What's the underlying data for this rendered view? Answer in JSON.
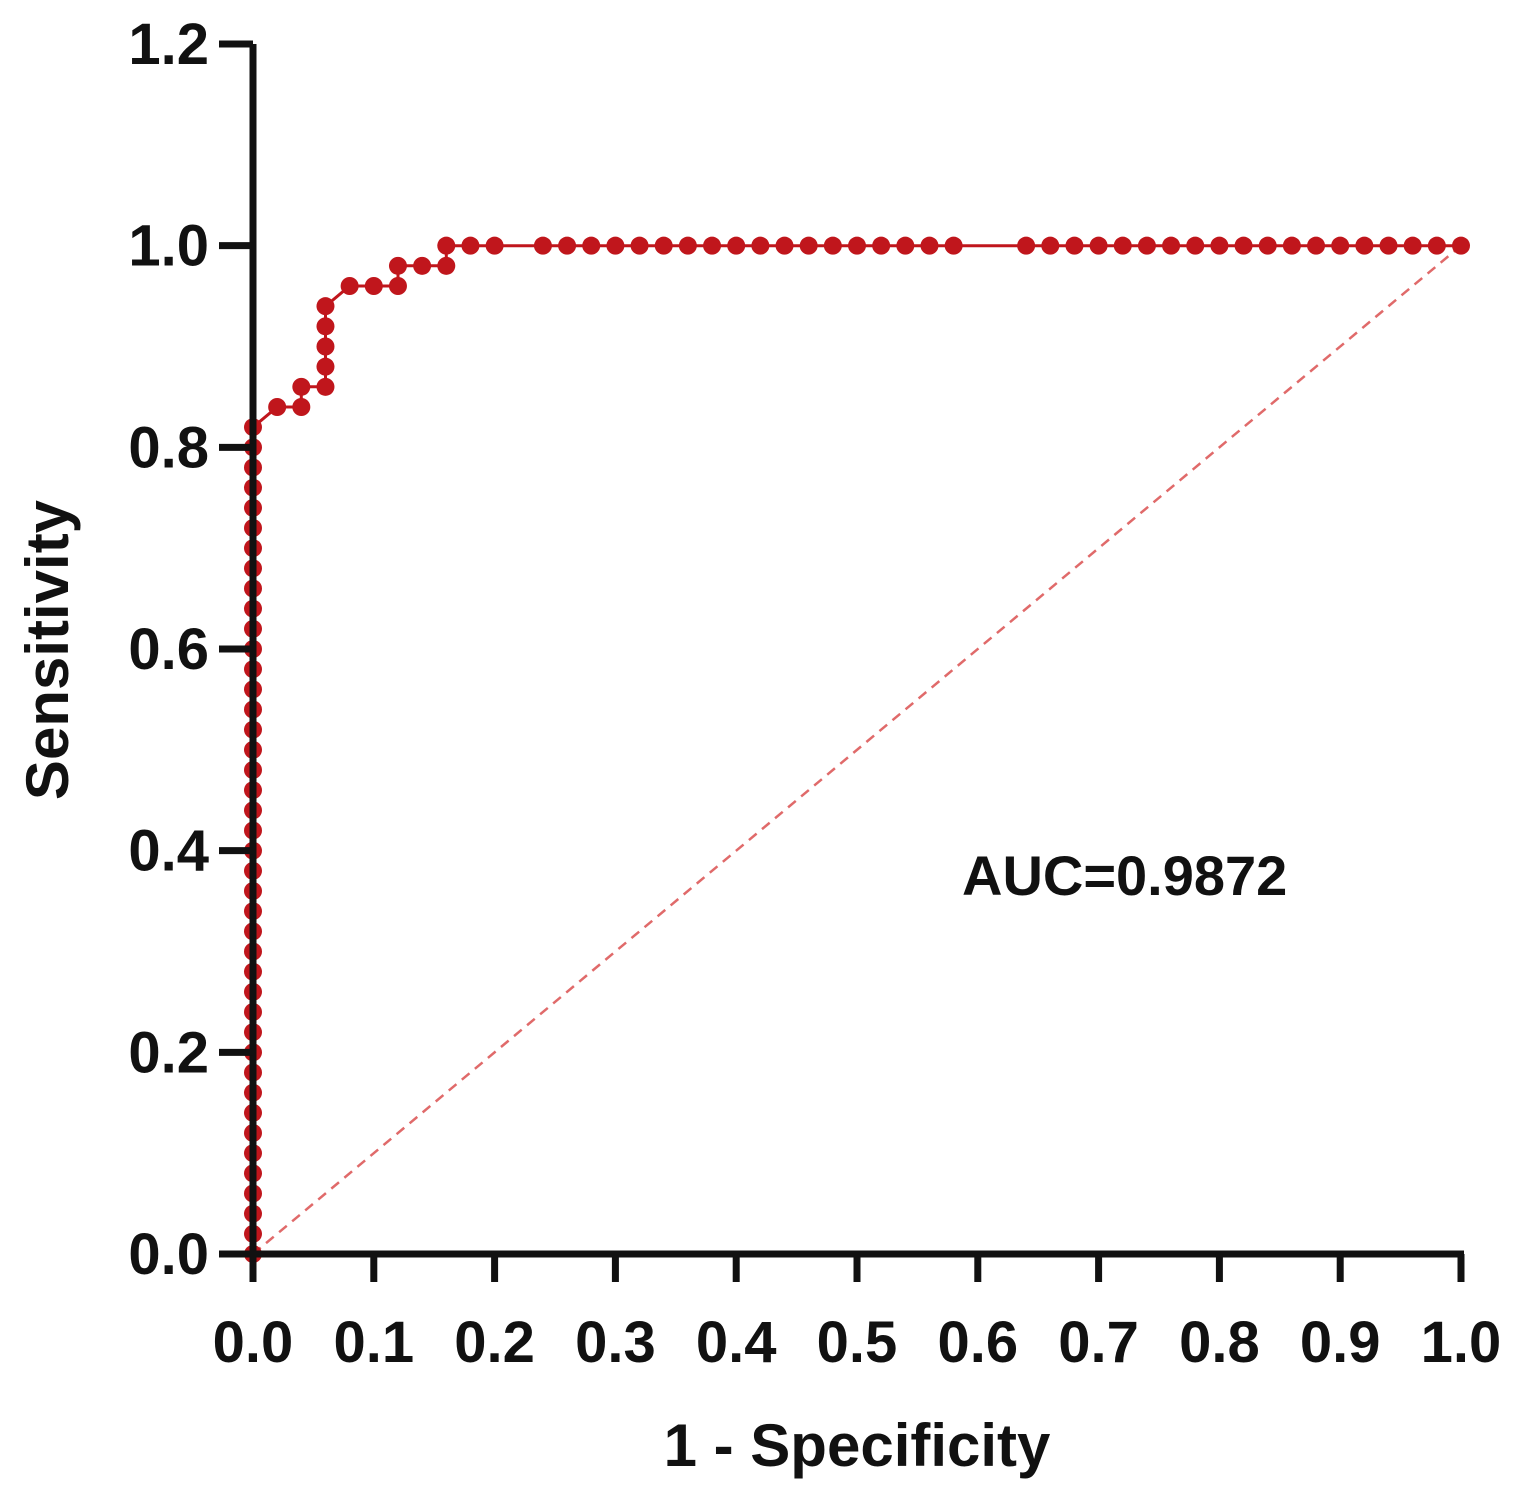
{
  "chart_data": {
    "type": "line",
    "title": "",
    "xlabel": "1 - Specificity",
    "ylabel": "Sensitivity",
    "xlim": [
      0,
      1.0
    ],
    "ylim": [
      0,
      1.2
    ],
    "xticks": [
      "0.0",
      "0.1",
      "0.2",
      "0.3",
      "0.4",
      "0.5",
      "0.6",
      "0.7",
      "0.8",
      "0.9",
      "1.0"
    ],
    "yticks": [
      "0.0",
      "0.2",
      "0.4",
      "0.6",
      "0.8",
      "1.0",
      "1.2"
    ],
    "grid": false,
    "annotation": "AUC=0.9872",
    "colors": {
      "roc": "#c0161c",
      "reference": "#e06a6a",
      "axis": "#111111"
    },
    "series": [
      {
        "role": "roc-curve",
        "points": [
          [
            0.0,
            0.0
          ],
          [
            0.0,
            0.02
          ],
          [
            0.0,
            0.04
          ],
          [
            0.0,
            0.06
          ],
          [
            0.0,
            0.08
          ],
          [
            0.0,
            0.1
          ],
          [
            0.0,
            0.12
          ],
          [
            0.0,
            0.14
          ],
          [
            0.0,
            0.16
          ],
          [
            0.0,
            0.18
          ],
          [
            0.0,
            0.2
          ],
          [
            0.0,
            0.22
          ],
          [
            0.0,
            0.24
          ],
          [
            0.0,
            0.26
          ],
          [
            0.0,
            0.28
          ],
          [
            0.0,
            0.3
          ],
          [
            0.0,
            0.32
          ],
          [
            0.0,
            0.34
          ],
          [
            0.0,
            0.36
          ],
          [
            0.0,
            0.38
          ],
          [
            0.0,
            0.4
          ],
          [
            0.0,
            0.42
          ],
          [
            0.0,
            0.44
          ],
          [
            0.0,
            0.46
          ],
          [
            0.0,
            0.48
          ],
          [
            0.0,
            0.5
          ],
          [
            0.0,
            0.52
          ],
          [
            0.0,
            0.54
          ],
          [
            0.0,
            0.56
          ],
          [
            0.0,
            0.58
          ],
          [
            0.0,
            0.6
          ],
          [
            0.0,
            0.62
          ],
          [
            0.0,
            0.64
          ],
          [
            0.0,
            0.66
          ],
          [
            0.0,
            0.68
          ],
          [
            0.0,
            0.7
          ],
          [
            0.0,
            0.72
          ],
          [
            0.0,
            0.74
          ],
          [
            0.0,
            0.76
          ],
          [
            0.0,
            0.78
          ],
          [
            0.0,
            0.8
          ],
          [
            0.0,
            0.82
          ],
          [
            0.02,
            0.84
          ],
          [
            0.04,
            0.84
          ],
          [
            0.04,
            0.86
          ],
          [
            0.06,
            0.86
          ],
          [
            0.06,
            0.88
          ],
          [
            0.06,
            0.9
          ],
          [
            0.06,
            0.92
          ],
          [
            0.06,
            0.94
          ],
          [
            0.08,
            0.96
          ],
          [
            0.1,
            0.96
          ],
          [
            0.12,
            0.96
          ],
          [
            0.12,
            0.98
          ],
          [
            0.14,
            0.98
          ],
          [
            0.16,
            0.98
          ],
          [
            0.16,
            1.0
          ],
          [
            0.18,
            1.0
          ],
          [
            0.2,
            1.0
          ],
          [
            0.24,
            1.0
          ],
          [
            0.26,
            1.0
          ],
          [
            0.28,
            1.0
          ],
          [
            0.3,
            1.0
          ],
          [
            0.32,
            1.0
          ],
          [
            0.34,
            1.0
          ],
          [
            0.36,
            1.0
          ],
          [
            0.38,
            1.0
          ],
          [
            0.4,
            1.0
          ],
          [
            0.42,
            1.0
          ],
          [
            0.44,
            1.0
          ],
          [
            0.46,
            1.0
          ],
          [
            0.48,
            1.0
          ],
          [
            0.5,
            1.0
          ],
          [
            0.52,
            1.0
          ],
          [
            0.54,
            1.0
          ],
          [
            0.56,
            1.0
          ],
          [
            0.58,
            1.0
          ],
          [
            0.64,
            1.0
          ],
          [
            0.66,
            1.0
          ],
          [
            0.68,
            1.0
          ],
          [
            0.7,
            1.0
          ],
          [
            0.72,
            1.0
          ],
          [
            0.74,
            1.0
          ],
          [
            0.76,
            1.0
          ],
          [
            0.78,
            1.0
          ],
          [
            0.8,
            1.0
          ],
          [
            0.82,
            1.0
          ],
          [
            0.84,
            1.0
          ],
          [
            0.86,
            1.0
          ],
          [
            0.88,
            1.0
          ],
          [
            0.9,
            1.0
          ],
          [
            0.92,
            1.0
          ],
          [
            0.94,
            1.0
          ],
          [
            0.96,
            1.0
          ],
          [
            0.98,
            1.0
          ],
          [
            1.0,
            1.0
          ]
        ]
      },
      {
        "role": "reference-line",
        "points": [
          [
            0.0,
            0.0
          ],
          [
            1.0,
            1.0
          ]
        ]
      }
    ]
  }
}
